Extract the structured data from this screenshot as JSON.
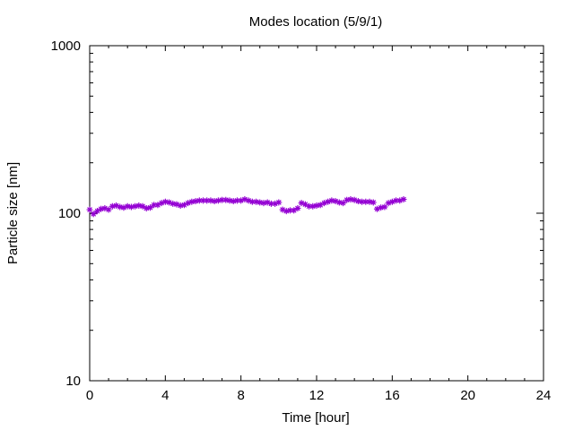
{
  "chart_data": {
    "type": "scatter",
    "title": "Modes location (5/9/1)",
    "xlabel": "Time [hour]",
    "ylabel": "Particle size [nm]",
    "xlim": [
      0,
      24
    ],
    "ylim": [
      10,
      1000
    ],
    "yscale": "log",
    "grid": false,
    "x_ticks": [
      0,
      4,
      8,
      12,
      16,
      20,
      24
    ],
    "y_ticks": [
      10,
      100,
      1000
    ],
    "x_tick_labels": [
      "0",
      "4",
      "8",
      "12",
      "16",
      "20",
      "24"
    ],
    "y_tick_labels": [
      "10",
      "100",
      "1000"
    ],
    "marker": "star",
    "colors": {
      "series": "#9400d3",
      "axes": "#000000"
    },
    "series": [
      {
        "x": [
          0.0,
          0.2,
          0.4,
          0.6,
          0.8,
          1.0,
          1.2,
          1.4,
          1.6,
          1.8,
          2.0,
          2.2,
          2.4,
          2.6,
          2.8,
          3.0,
          3.2,
          3.4,
          3.6,
          3.8,
          4.0,
          4.2,
          4.4,
          4.6,
          4.8,
          5.0,
          5.2,
          5.4,
          5.6,
          5.8,
          6.0,
          6.2,
          6.4,
          6.6,
          6.8,
          7.0,
          7.2,
          7.4,
          7.6,
          7.8,
          8.0,
          8.2,
          8.4,
          8.6,
          8.8,
          9.0,
          9.2,
          9.4,
          9.6,
          9.8,
          10.0,
          10.2,
          10.4,
          10.6,
          10.8,
          11.0,
          11.2,
          11.4,
          11.6,
          11.8,
          12.0,
          12.2,
          12.4,
          12.6,
          12.8,
          13.0,
          13.2,
          13.4,
          13.6,
          13.8,
          14.0,
          14.2,
          14.4,
          14.6,
          14.8,
          15.0,
          15.2,
          15.4,
          15.6,
          15.8,
          16.0,
          16.2,
          16.4,
          16.6
        ],
        "y": [
          105,
          99,
          103,
          106,
          107,
          105,
          110,
          111,
          109,
          108,
          110,
          109,
          110,
          111,
          110,
          107,
          108,
          112,
          112,
          115,
          117,
          116,
          114,
          113,
          111,
          112,
          115,
          117,
          118,
          119,
          119,
          119,
          119,
          118,
          119,
          120,
          120,
          119,
          118,
          119,
          119,
          121,
          119,
          117,
          117,
          116,
          115,
          116,
          114,
          114,
          116,
          105,
          103,
          104,
          104,
          107,
          115,
          113,
          110,
          110,
          111,
          112,
          115,
          117,
          119,
          118,
          116,
          115,
          120,
          121,
          120,
          118,
          117,
          117,
          117,
          116,
          106,
          108,
          109,
          115,
          117,
          119,
          119,
          121
        ]
      }
    ]
  }
}
